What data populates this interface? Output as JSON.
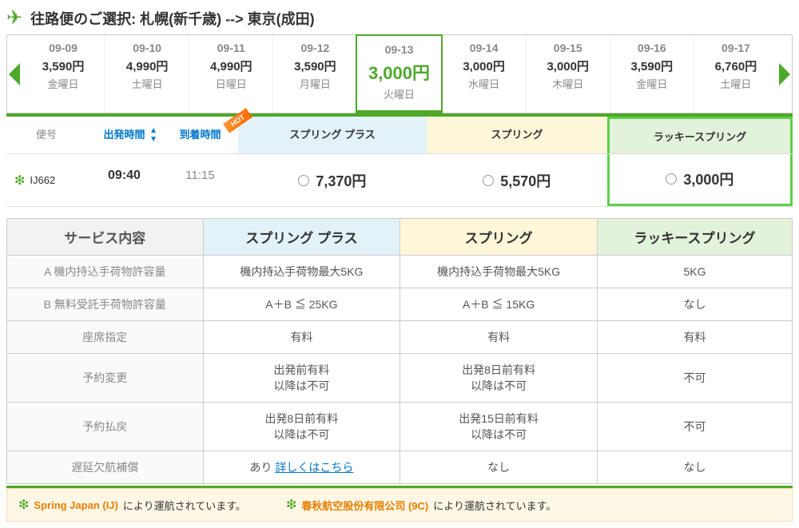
{
  "route": {
    "label_prefix": "往路便のご選択:",
    "from": "札幌(新千歳)",
    "to": "東京(成田)"
  },
  "dates": [
    {
      "date": "09-09",
      "price": "3,590円",
      "dow": "金曜日",
      "selected": false
    },
    {
      "date": "09-10",
      "price": "4,990円",
      "dow": "土曜日",
      "selected": false
    },
    {
      "date": "09-11",
      "price": "4,990円",
      "dow": "日曜日",
      "selected": false
    },
    {
      "date": "09-12",
      "price": "3,590円",
      "dow": "月曜日",
      "selected": false
    },
    {
      "date": "09-13",
      "price": "3,000円",
      "dow": "火曜日",
      "selected": true
    },
    {
      "date": "09-14",
      "price": "3,000円",
      "dow": "水曜日",
      "selected": false
    },
    {
      "date": "09-15",
      "price": "3,000円",
      "dow": "木曜日",
      "selected": false
    },
    {
      "date": "09-16",
      "price": "3,590円",
      "dow": "金曜日",
      "selected": false
    },
    {
      "date": "09-17",
      "price": "6,760円",
      "dow": "土曜日",
      "selected": false
    }
  ],
  "fare_cols": {
    "flight_no": "便号",
    "departure": "出発時間",
    "arrival": "到着時間",
    "plus": "スプリング プラス",
    "spring": "スプリング",
    "lucky": "ラッキースプリング",
    "hot": "HOT"
  },
  "flights": [
    {
      "code": "IJ662",
      "dep": "09:40",
      "arr": "11:15",
      "plus": "7,370円",
      "spring": "5,570円",
      "lucky": "3,000円"
    }
  ],
  "service": {
    "header": "サービス内容",
    "rows": [
      {
        "label": "A 機内持込手荷物許容量",
        "plus": "機内持込手荷物最大5KG",
        "spring": "機内持込手荷物最大5KG",
        "lucky": "5KG"
      },
      {
        "label": "B 無料受託手荷物許容量",
        "plus": "A＋B ≦ 25KG",
        "spring": "A＋B ≦ 15KG",
        "lucky": "なし"
      },
      {
        "label": "座席指定",
        "plus": "有料",
        "spring": "有料",
        "lucky": "有料"
      },
      {
        "label": "予約変更",
        "plus": "出発前有料\n以降は不可",
        "spring": "出発8日前有料\n以降は不可",
        "lucky": "不可"
      },
      {
        "label": "予約払戻",
        "plus": "出発8日前有料\n以降は不可",
        "spring": "出発15日前有料\n以降は不可",
        "lucky": "不可"
      },
      {
        "label": "遅延欠航補償",
        "plus": "あり ",
        "plus_link": "詳しくはこちら",
        "spring": "なし",
        "lucky": "なし"
      }
    ]
  },
  "operators": [
    {
      "name": "Spring Japan (IJ)",
      "suffix": "により運航されています。"
    },
    {
      "name": "春秋航空股份有限公司 (9C)",
      "suffix": "により運航されています。"
    }
  ],
  "colors": {
    "accent": "#4fa82a",
    "highlight": "#5fd048",
    "link": "#0077cc",
    "orange": "#e67e00"
  }
}
